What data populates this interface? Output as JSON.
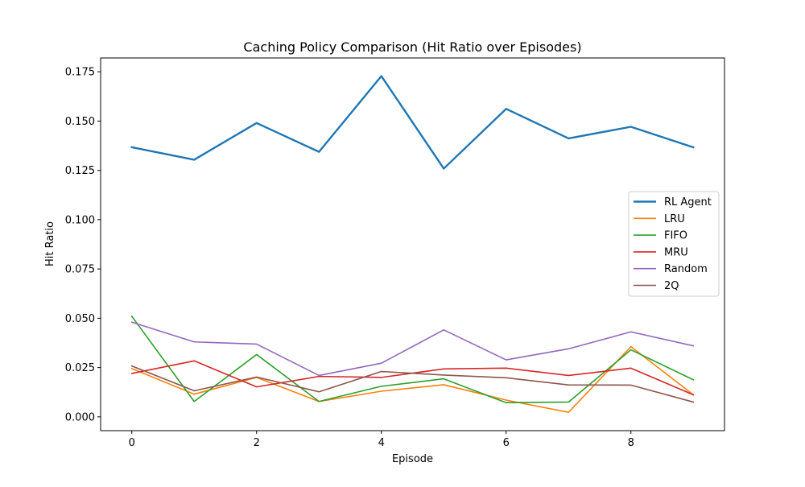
{
  "chart_data": {
    "type": "line",
    "title": "Caching Policy Comparison (Hit Ratio over Episodes)",
    "xlabel": "Episode",
    "ylabel": "Hit Ratio",
    "xlim": [
      -0.5,
      9.5
    ],
    "ylim": [
      -0.007,
      0.182
    ],
    "x": [
      0,
      1,
      2,
      3,
      4,
      5,
      6,
      7,
      8,
      9
    ],
    "xticks": [
      0,
      2,
      4,
      6,
      8
    ],
    "xtick_labels": [
      "0",
      "2",
      "4",
      "6",
      "8"
    ],
    "yticks": [
      0.0,
      0.025,
      0.05,
      0.075,
      0.1,
      0.125,
      0.15,
      0.175
    ],
    "ytick_labels": [
      "0.000",
      "0.025",
      "0.050",
      "0.075",
      "0.100",
      "0.125",
      "0.150",
      "0.175"
    ],
    "grid": false,
    "legend_position": "center-right",
    "series": [
      {
        "name": "RL Agent",
        "color": "#1f77b4",
        "emphasis": true,
        "values": [
          0.1367,
          0.1304,
          0.149,
          0.1344,
          0.1728,
          0.1259,
          0.1562,
          0.1412,
          0.1471,
          0.1367
        ]
      },
      {
        "name": "LRU",
        "color": "#ff7f0e",
        "values": [
          0.0245,
          0.0115,
          0.02,
          0.0078,
          0.013,
          0.0163,
          0.0085,
          0.0023,
          0.0356,
          0.0112
        ]
      },
      {
        "name": "FIFO",
        "color": "#2ca02c",
        "values": [
          0.051,
          0.0078,
          0.0316,
          0.0078,
          0.0155,
          0.0193,
          0.0072,
          0.0075,
          0.034,
          0.0188
        ]
      },
      {
        "name": "MRU",
        "color": "#d62728",
        "values": [
          0.022,
          0.0284,
          0.0152,
          0.0205,
          0.02,
          0.0243,
          0.0247,
          0.021,
          0.0247,
          0.0112
        ]
      },
      {
        "name": "Random",
        "color": "#9467bd",
        "values": [
          0.048,
          0.038,
          0.0369,
          0.021,
          0.0272,
          0.0441,
          0.0289,
          0.0345,
          0.0431,
          0.036
        ]
      },
      {
        "name": "2Q",
        "color": "#8c564b",
        "values": [
          0.0258,
          0.0132,
          0.0202,
          0.0127,
          0.023,
          0.0212,
          0.0198,
          0.0162,
          0.0161,
          0.0075
        ]
      }
    ]
  }
}
